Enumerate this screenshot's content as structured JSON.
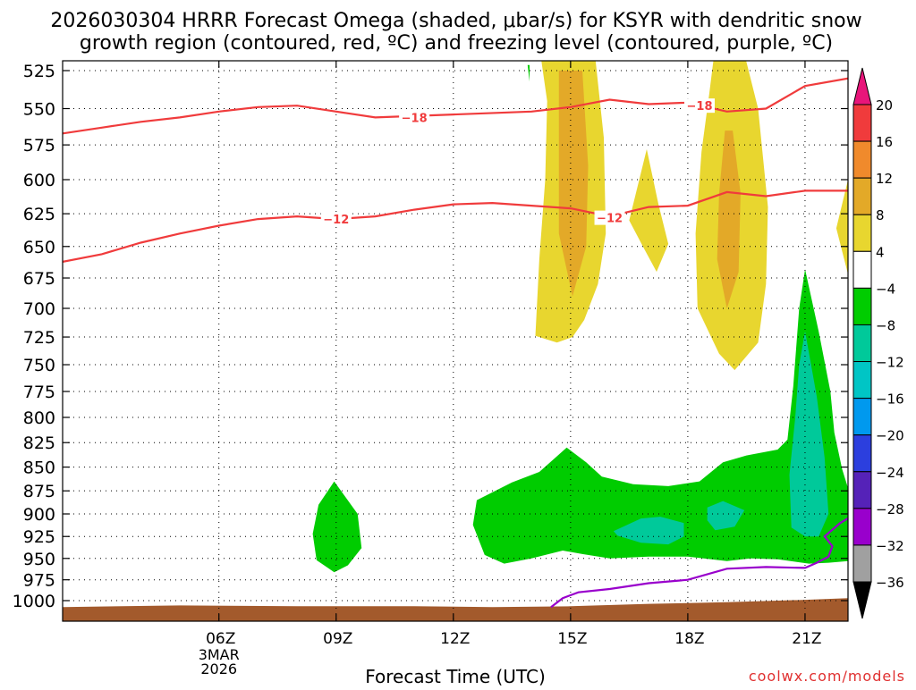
{
  "chart_data": {
    "type": "contour",
    "title_line1": "2026030304 HRRR Forecast Omega (shaded, μbar/s) for KSYR with dendritic snow",
    "title_line2": "growth region (contoured, red, ºC) and freezing level (contoured, purple, ºC)",
    "xlabel": "Forecast Time (UTC)",
    "ylabel": "",
    "watermark": "coolwx.com/models",
    "x_axis": {
      "range_hours": [
        2.0,
        22.1
      ],
      "ticks": [
        {
          "hour": 6,
          "label": "06Z",
          "sublabels": [
            "3MAR",
            "2026"
          ]
        },
        {
          "hour": 9,
          "label": "09Z"
        },
        {
          "hour": 12,
          "label": "12Z"
        },
        {
          "hour": 15,
          "label": "15Z"
        },
        {
          "hour": 18,
          "label": "18Z"
        },
        {
          "hour": 21,
          "label": "21Z"
        }
      ]
    },
    "y_axis": {
      "range_hpa": [
        1010,
        515
      ],
      "ticks": [
        525,
        550,
        575,
        600,
        625,
        650,
        675,
        700,
        725,
        750,
        775,
        800,
        825,
        850,
        875,
        900,
        925,
        950,
        975,
        1000
      ]
    },
    "grid": true,
    "colorbar": {
      "labels": [
        "20",
        "16",
        "12",
        "8",
        "4",
        "−4",
        "−8",
        "−12",
        "−16",
        "−20",
        "−24",
        "−28",
        "−32",
        "−36"
      ],
      "colors": [
        "#f03b3c",
        "#f08a2c",
        "#e3a928",
        "#e8d62f",
        "#ffffff",
        "#00cc00",
        "#00c99a",
        "#00c5c5",
        "#0099ee",
        "#2c3fde",
        "#5522b8",
        "#9900cc",
        "#a0a0a0"
      ],
      "top_arrow_color": "#e8157a",
      "bottom_arrow_color": "#000000"
    },
    "contours": {
      "dendritic_red": [
        {
          "label": "−18",
          "color": "#f03b3c",
          "label_positions": [
            [
              11.0,
              556
            ],
            [
              18.3,
              548
            ]
          ],
          "points": [
            [
              2.0,
              567
            ],
            [
              3.0,
              563
            ],
            [
              4.0,
              559
            ],
            [
              5.0,
              556
            ],
            [
              6.0,
              552
            ],
            [
              7.0,
              549
            ],
            [
              8.0,
              548
            ],
            [
              9.0,
              552
            ],
            [
              10.0,
              556
            ],
            [
              12.0,
              554
            ],
            [
              14.0,
              552
            ],
            [
              15.0,
              549
            ],
            [
              16.0,
              544
            ],
            [
              17.0,
              547
            ],
            [
              18.0,
              546
            ],
            [
              19.0,
              552
            ],
            [
              20.0,
              550
            ],
            [
              21.0,
              535
            ],
            [
              22.1,
              530
            ]
          ]
        },
        {
          "label": "−12",
          "color": "#f03b3c",
          "label_positions": [
            [
              9.0,
              629
            ],
            [
              16.0,
              628
            ]
          ],
          "points": [
            [
              2.0,
              662
            ],
            [
              3.0,
              656
            ],
            [
              4.0,
              647
            ],
            [
              5.0,
              640
            ],
            [
              6.0,
              634
            ],
            [
              7.0,
              629
            ],
            [
              8.0,
              627
            ],
            [
              9.0,
              629
            ],
            [
              10.0,
              627
            ],
            [
              11.0,
              622
            ],
            [
              12.0,
              618
            ],
            [
              13.0,
              617
            ],
            [
              14.0,
              619
            ],
            [
              15.0,
              621
            ],
            [
              16.0,
              627
            ],
            [
              17.0,
              620
            ],
            [
              18.0,
              619
            ],
            [
              19.0,
              609
            ],
            [
              20.0,
              612
            ],
            [
              21.0,
              608
            ],
            [
              22.1,
              608
            ]
          ]
        }
      ],
      "freezing_purple": {
        "color": "#9900cc",
        "points": [
          [
            14.5,
            1008
          ],
          [
            14.8,
            997
          ],
          [
            15.2,
            990
          ],
          [
            16.0,
            986
          ],
          [
            17.0,
            979
          ],
          [
            18.0,
            975
          ],
          [
            19.0,
            962
          ],
          [
            20.0,
            960
          ],
          [
            21.0,
            961
          ],
          [
            21.3,
            955
          ],
          [
            21.6,
            948
          ],
          [
            21.7,
            936
          ],
          [
            21.5,
            925
          ],
          [
            21.9,
            910
          ],
          [
            22.4,
            897
          ]
        ]
      }
    },
    "shaded_regions": [
      {
        "label": "4",
        "color": "#e8d62f",
        "points": [
          [
            14.2,
            512
          ],
          [
            15.6,
            512
          ],
          [
            15.85,
            570
          ],
          [
            15.9,
            640
          ],
          [
            15.7,
            680
          ],
          [
            15.35,
            710
          ],
          [
            15.05,
            725
          ],
          [
            14.65,
            730
          ],
          [
            14.1,
            724
          ],
          [
            14.2,
            660
          ],
          [
            14.35,
            600
          ],
          [
            14.4,
            545
          ]
        ]
      },
      {
        "label": "8",
        "color": "#e3a928",
        "points": [
          [
            14.7,
            525
          ],
          [
            15.3,
            525
          ],
          [
            15.45,
            590
          ],
          [
            15.4,
            650
          ],
          [
            15.05,
            690
          ],
          [
            14.7,
            640
          ],
          [
            14.7,
            580
          ]
        ]
      },
      {
        "label": "4",
        "color": "#e8d62f",
        "points": [
          [
            18.7,
            512
          ],
          [
            19.4,
            512
          ],
          [
            19.8,
            550
          ],
          [
            20.05,
            620
          ],
          [
            20.0,
            680
          ],
          [
            19.8,
            730
          ],
          [
            19.2,
            755
          ],
          [
            18.8,
            740
          ],
          [
            18.25,
            700
          ],
          [
            18.2,
            640
          ],
          [
            18.35,
            580
          ],
          [
            18.55,
            540
          ]
        ]
      },
      {
        "label": "8",
        "color": "#e3a928",
        "points": [
          [
            18.95,
            565
          ],
          [
            19.15,
            565
          ],
          [
            19.35,
            610
          ],
          [
            19.3,
            670
          ],
          [
            19.0,
            700
          ],
          [
            18.75,
            660
          ],
          [
            18.8,
            610
          ]
        ]
      },
      {
        "label": "4",
        "color": "#e8d62f",
        "points": [
          [
            16.95,
            578
          ],
          [
            17.25,
            618
          ],
          [
            17.5,
            648
          ],
          [
            17.2,
            670
          ],
          [
            16.85,
            650
          ],
          [
            16.5,
            630
          ]
        ]
      },
      {
        "label": "4",
        "color": "#e8d62f",
        "points": [
          [
            22.1,
            600
          ],
          [
            21.8,
            636
          ],
          [
            22.1,
            672
          ]
        ]
      },
      {
        "label": "−4",
        "color": "#00cc00",
        "points": [
          [
            13.9,
            522
          ],
          [
            13.95,
            522
          ],
          [
            13.95,
            532
          ]
        ]
      },
      {
        "label": "−4",
        "color": "#00cc00",
        "points": [
          [
            8.95,
            865
          ],
          [
            9.55,
            900
          ],
          [
            9.65,
            938
          ],
          [
            9.3,
            958
          ],
          [
            8.95,
            966
          ],
          [
            8.5,
            952
          ],
          [
            8.4,
            922
          ],
          [
            8.55,
            890
          ]
        ]
      },
      {
        "label": "−4",
        "color": "#00cc00",
        "points": [
          [
            12.6,
            885
          ],
          [
            13.5,
            866
          ],
          [
            14.2,
            855
          ],
          [
            14.9,
            830
          ],
          [
            15.4,
            845
          ],
          [
            15.8,
            860
          ],
          [
            16.6,
            868
          ],
          [
            17.5,
            870
          ],
          [
            18.3,
            865
          ],
          [
            18.9,
            845
          ],
          [
            19.5,
            838
          ],
          [
            20.3,
            832
          ],
          [
            20.55,
            822
          ],
          [
            20.7,
            770
          ],
          [
            20.85,
            700
          ],
          [
            21.0,
            668
          ],
          [
            21.35,
            720
          ],
          [
            21.65,
            775
          ],
          [
            21.75,
            815
          ],
          [
            21.95,
            852
          ],
          [
            22.1,
            872
          ],
          [
            22.1,
            953
          ],
          [
            21.6,
            955
          ],
          [
            21.1,
            956
          ],
          [
            20.3,
            951
          ],
          [
            19.6,
            950
          ],
          [
            19.0,
            953
          ],
          [
            18.0,
            948
          ],
          [
            17.0,
            948
          ],
          [
            16.0,
            950
          ],
          [
            15.3,
            945
          ],
          [
            14.8,
            941
          ],
          [
            14.0,
            950
          ],
          [
            13.3,
            956
          ],
          [
            12.8,
            946
          ],
          [
            12.5,
            912
          ]
        ]
      },
      {
        "label": "−8",
        "color": "#00c99a",
        "points": [
          [
            21.0,
            720
          ],
          [
            21.3,
            780
          ],
          [
            21.5,
            840
          ],
          [
            21.6,
            900
          ],
          [
            21.35,
            925
          ],
          [
            21.0,
            925
          ],
          [
            20.65,
            915
          ],
          [
            20.6,
            858
          ],
          [
            20.75,
            800
          ],
          [
            20.85,
            750
          ]
        ]
      },
      {
        "label": "−8",
        "color": "#00c99a",
        "points": [
          [
            16.1,
            919
          ],
          [
            16.8,
            905
          ],
          [
            17.3,
            903
          ],
          [
            17.9,
            910
          ],
          [
            17.9,
            925
          ],
          [
            17.5,
            934
          ],
          [
            16.8,
            932
          ],
          [
            16.2,
            924
          ]
        ]
      },
      {
        "label": "−8",
        "color": "#00c99a",
        "points": [
          [
            18.5,
            893
          ],
          [
            18.9,
            886
          ],
          [
            19.45,
            896
          ],
          [
            19.2,
            914
          ],
          [
            18.7,
            918
          ],
          [
            18.5,
            907
          ]
        ]
      }
    ],
    "terrain": {
      "color": "#a35a2c",
      "surface_hpa": [
        [
          2.0,
          1008
        ],
        [
          5.0,
          1006
        ],
        [
          8.0,
          1007
        ],
        [
          11.0,
          1007
        ],
        [
          13.0,
          1008
        ],
        [
          15.0,
          1007
        ],
        [
          17.0,
          1004
        ],
        [
          19.0,
          1002
        ],
        [
          21.0,
          999
        ],
        [
          22.1,
          997
        ]
      ]
    }
  }
}
